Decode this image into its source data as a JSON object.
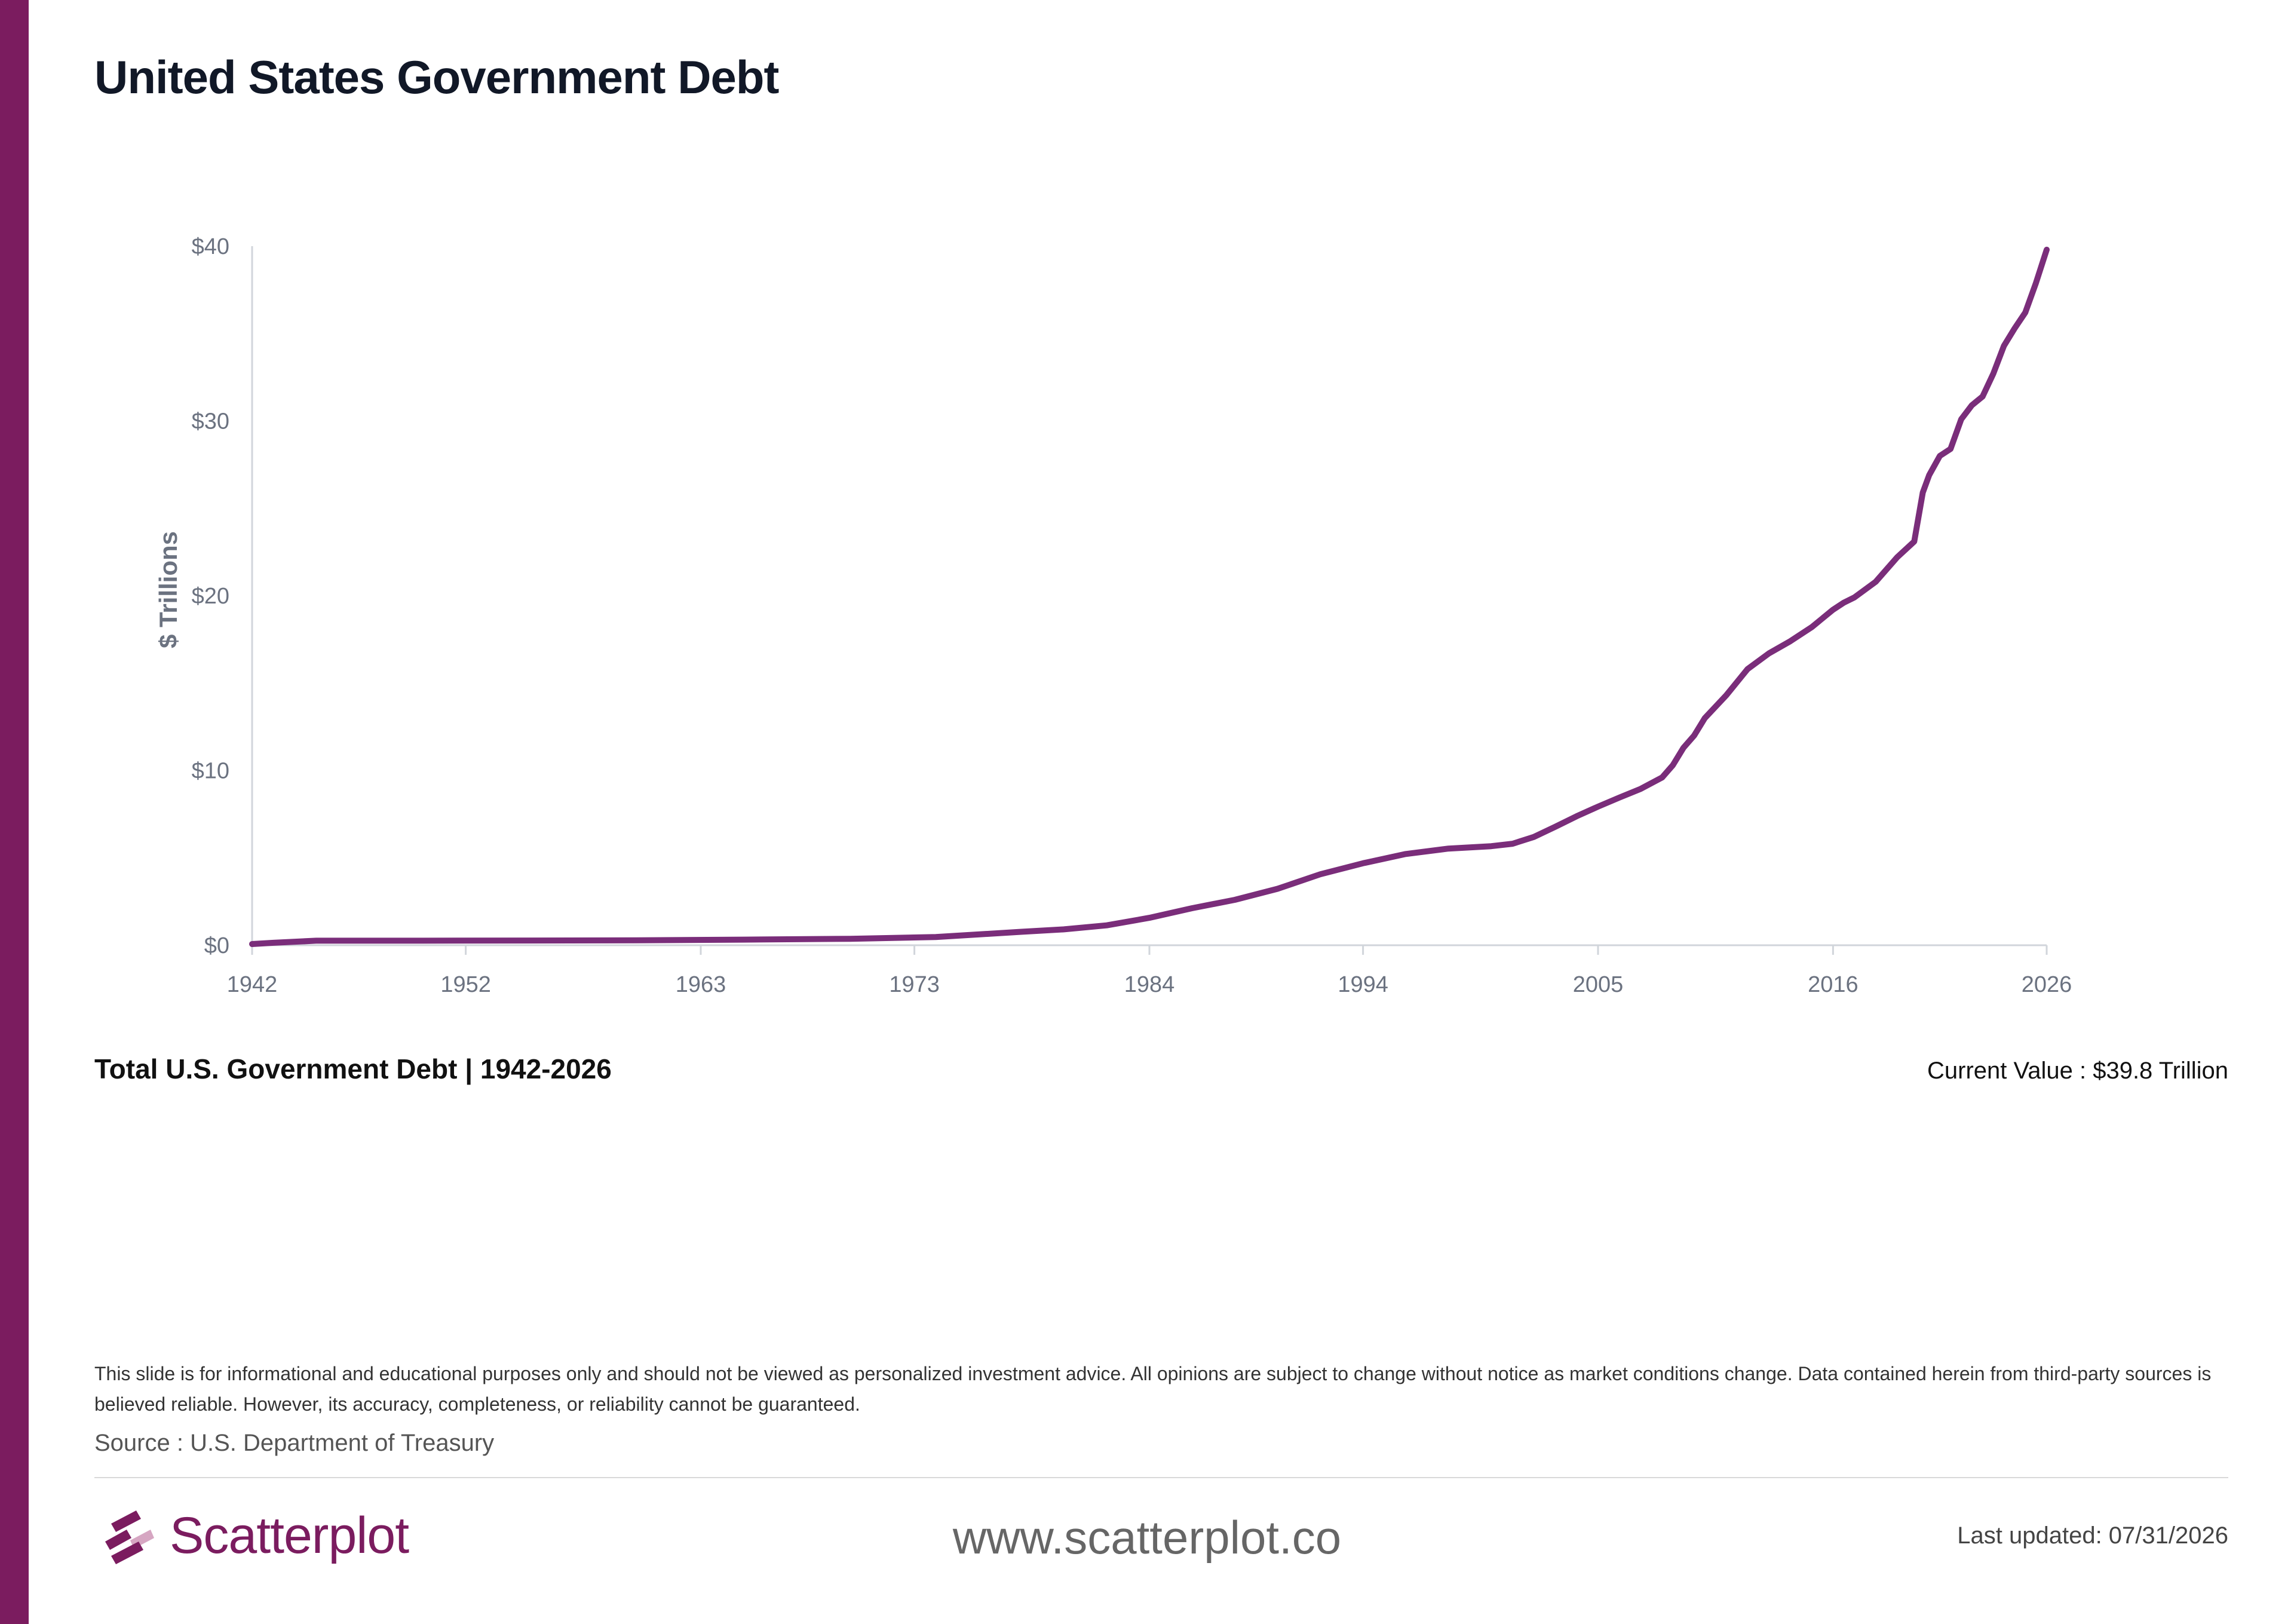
{
  "title": "United States Government Debt",
  "colors": {
    "accent": "#7b1c5f",
    "line": "#7a2d7a",
    "axis_text": "#6b7280"
  },
  "chart_data": {
    "type": "line",
    "title": "",
    "xlabel": "",
    "ylabel": "$ Trillions",
    "xlim": [
      1942,
      2026
    ],
    "ylim": [
      0,
      40
    ],
    "x_ticks": [
      "1942",
      "1952",
      "1963",
      "1973",
      "1984",
      "1994",
      "2005",
      "2016",
      "2026"
    ],
    "y_ticks": [
      "$0",
      "$10",
      "$20",
      "$30",
      "$40"
    ],
    "grid": false,
    "legend": "none",
    "series": [
      {
        "name": "",
        "x": [
          1942,
          1943,
          1945,
          1950,
          1960,
          1965,
          1970,
          1974,
          1976,
          1978,
          1980,
          1982,
          1984,
          1986,
          1988,
          1990,
          1992,
          1994,
          1996,
          1998,
          2000,
          2001,
          2002,
          2003,
          2004,
          2005,
          2006,
          2007,
          2008,
          2008.5,
          2009,
          2009.5,
          2010,
          2011,
          2012,
          2013,
          2014,
          2015,
          2016,
          2016.5,
          2017,
          2018,
          2019,
          2019.8,
          2020.2,
          2020.5,
          2021,
          2021.5,
          2022,
          2022.5,
          2023,
          2023.5,
          2024,
          2024.5,
          2025,
          2025.5,
          2026
        ],
        "values": [
          0.07,
          0.14,
          0.26,
          0.26,
          0.28,
          0.32,
          0.37,
          0.47,
          0.62,
          0.77,
          0.91,
          1.14,
          1.57,
          2.12,
          2.6,
          3.23,
          4.06,
          4.69,
          5.22,
          5.53,
          5.67,
          5.81,
          6.2,
          6.78,
          7.38,
          7.93,
          8.45,
          8.95,
          9.6,
          10.3,
          11.3,
          12.0,
          13.0,
          14.3,
          15.8,
          16.7,
          17.4,
          18.2,
          19.2,
          19.6,
          19.9,
          20.8,
          22.2,
          23.1,
          25.9,
          26.9,
          28.0,
          28.4,
          30.1,
          30.9,
          31.4,
          32.7,
          34.3,
          35.3,
          36.2,
          37.9,
          39.8
        ]
      }
    ]
  },
  "chart_caption": "Total U.S. Government Debt | 1942-2026",
  "current_value": "Current Value :  $39.8 Trillion",
  "disclaimer": "This slide is for informational and educational purposes only and should not be viewed as personalized investment advice. All opinions are subject to change without notice as market conditions change. Data contained herein from third-party sources is believed reliable. However, its accuracy, completeness, or reliability cannot be guaranteed.",
  "source": "Source : U.S. Department of Treasury",
  "brand": {
    "name": "Scatterplot",
    "icon": "scatterplot-logo-icon"
  },
  "website": "www.scatterplot.co",
  "last_updated": "Last updated: 07/31/2026"
}
